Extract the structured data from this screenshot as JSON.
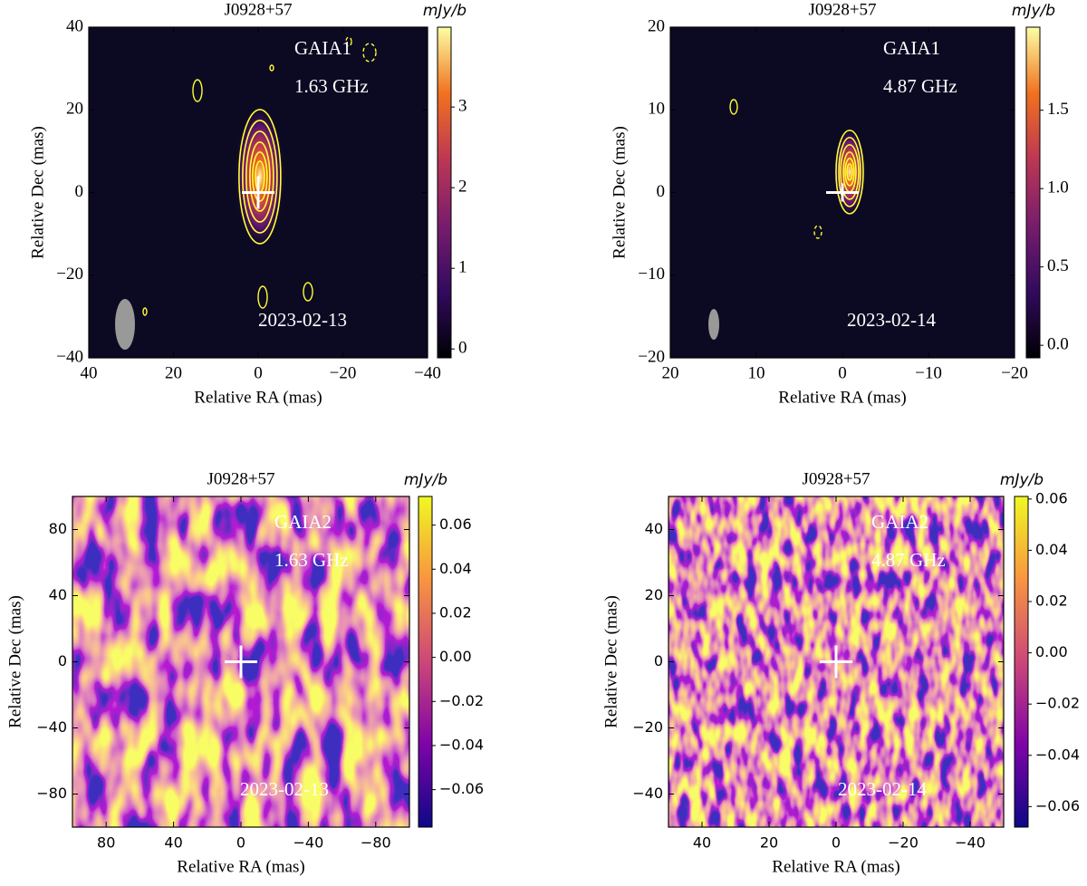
{
  "chart_data": [
    {
      "type": "image",
      "title": "J0928+57",
      "xlabel": "Relative RA (mas)",
      "ylabel": "Relative Dec (mas)",
      "xlim": [
        40,
        -40
      ],
      "xticks": [
        40,
        20,
        0,
        {
          "value": -20,
          "label": "−20"
        },
        {
          "value": -40,
          "label": "−40"
        }
      ],
      "ylim": [
        -40,
        40
      ],
      "yticks": [
        {
          "value": -40,
          "label": "−40"
        },
        {
          "value": -20,
          "label": "−20"
        },
        0,
        20,
        40
      ],
      "colormap": "inferno",
      "colorbar": {
        "label": "mJy/b",
        "lim": [
          -0.11,
          3.99
        ],
        "ticks": [
          0,
          1,
          2,
          3
        ]
      },
      "source": "GAIA1",
      "frequency": "1.63 GHz",
      "date": "2023-02-13"
    },
    {
      "type": "image",
      "title": "J0928+57",
      "xlabel": "Relative RA (mas)",
      "ylabel": "Relative Dec (mas)",
      "xlim": [
        20,
        -20
      ],
      "xticks": [
        20,
        10,
        0,
        {
          "value": -10,
          "label": "−10"
        },
        {
          "value": -20,
          "label": "−20"
        }
      ],
      "ylim": [
        -20,
        20
      ],
      "yticks": [
        {
          "value": -20,
          "label": "−20"
        },
        {
          "value": -10,
          "label": "−10"
        },
        0,
        10,
        20
      ],
      "colormap": "inferno",
      "colorbar": {
        "label": "mJy/b",
        "lim": [
          -0.08,
          2.03
        ],
        "ticks": [
          {
            "value": 0,
            "label": "0.0"
          },
          0.5,
          {
            "value": 1,
            "label": "1.0"
          },
          1.5
        ]
      },
      "source": "GAIA1",
      "frequency": "4.87 GHz",
      "date": "2023-02-14"
    },
    {
      "type": "image",
      "title": "J0928+57",
      "xlabel": "Relative RA (mas)",
      "ylabel": "Relative Dec (mas)",
      "xlim": [
        100,
        -100
      ],
      "xticks": [
        80,
        40,
        0,
        {
          "value": -40,
          "label": "−40"
        },
        {
          "value": -80,
          "label": "−80"
        }
      ],
      "ylim": [
        -100,
        100
      ],
      "yticks": [
        {
          "value": -80,
          "label": "−80"
        },
        {
          "value": -40,
          "label": "−40"
        },
        0,
        40,
        80
      ],
      "colormap": "plasma",
      "colorbar": {
        "label": "mJy/b",
        "lim": [
          -0.077,
          0.073
        ],
        "ticks": [
          {
            "value": -0.06,
            "label": "−0.06"
          },
          {
            "value": -0.04,
            "label": "−0.04"
          },
          {
            "value": -0.02,
            "label": "−0.02"
          },
          {
            "value": 0,
            "label": "0.00"
          },
          0.02,
          0.04,
          0.06
        ]
      },
      "source": "GAIA2",
      "frequency": "1.63 GHz",
      "date": "2023-02-13"
    },
    {
      "type": "image",
      "title": "J0928+57",
      "xlabel": "Relative RA (mas)",
      "ylabel": "Relative Dec (mas)",
      "xlim": [
        50,
        -50
      ],
      "xticks": [
        40,
        20,
        0,
        {
          "value": -20,
          "label": "−20"
        },
        {
          "value": -40,
          "label": "−40"
        }
      ],
      "ylim": [
        -50,
        50
      ],
      "yticks": [
        {
          "value": -40,
          "label": "−40"
        },
        {
          "value": -20,
          "label": "−20"
        },
        0,
        20,
        40
      ],
      "colormap": "plasma",
      "colorbar": {
        "label": "mJy/b",
        "lim": [
          -0.068,
          0.061
        ],
        "ticks": [
          {
            "value": -0.06,
            "label": "−0.06"
          },
          {
            "value": -0.04,
            "label": "−0.04"
          },
          {
            "value": -0.02,
            "label": "−0.02"
          },
          {
            "value": 0,
            "label": "0.00"
          },
          0.02,
          0.04,
          0.06
        ]
      },
      "source": "GAIA2",
      "frequency": "4.87 GHz",
      "date": "2023-02-14"
    }
  ]
}
